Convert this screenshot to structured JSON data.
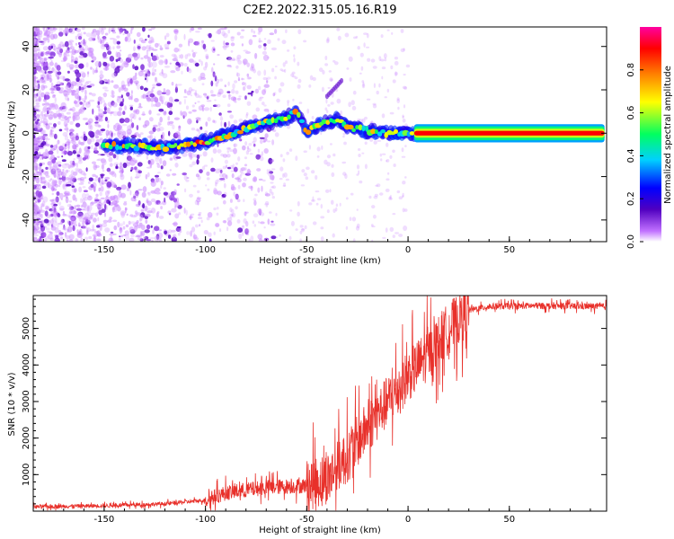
{
  "title": "C2E2.2022.315.05.16.R19",
  "chart_data": [
    {
      "type": "heatmap",
      "xlabel": "Height of straight line (km)",
      "ylabel": "Frequency (Hz)",
      "xlim": [
        -185,
        98
      ],
      "ylim": [
        -50,
        49
      ],
      "xticks": [
        -150,
        -100,
        -50,
        0,
        50
      ],
      "yticks": [
        -40,
        -20,
        0,
        20,
        40
      ],
      "grid": false,
      "colorbar": {
        "label": "Normalized spectral amplitude",
        "range": [
          0,
          1
        ],
        "ticks": [
          0.0,
          0.2,
          0.4,
          0.6,
          0.8
        ],
        "tick_labels": [
          "0.0",
          "0.2",
          "0.4",
          "0.6",
          "0.8"
        ],
        "colormap": [
          "#ffffff",
          "#c070ff",
          "#5000c0",
          "#0000ff",
          "#00d0ff",
          "#00ff60",
          "#ffff00",
          "#ff8000",
          "#ff0000",
          "#ff00a0"
        ]
      },
      "ridge": {
        "description_points": [
          {
            "x": -150,
            "y": -5.5
          },
          {
            "x": -120,
            "y": -6.5
          },
          {
            "x": -100,
            "y": -4
          },
          {
            "x": -90,
            "y": -1
          },
          {
            "x": -80,
            "y": 2
          },
          {
            "x": -70,
            "y": 5
          },
          {
            "x": -60,
            "y": 7
          },
          {
            "x": -55,
            "y": 10
          },
          {
            "x": -50,
            "y": 1
          },
          {
            "x": -40,
            "y": 5
          },
          {
            "x": -35,
            "y": 6
          },
          {
            "x": -30,
            "y": 3
          },
          {
            "x": -20,
            "y": 1
          },
          {
            "x": -10,
            "y": 0
          },
          {
            "x": 0,
            "y": 0
          },
          {
            "x": 97,
            "y": 0
          }
        ],
        "steady_tone": {
          "x_start": 3,
          "x_end": 97,
          "y": 0
        }
      }
    },
    {
      "type": "line",
      "xlabel": "Height of straight line (km)",
      "ylabel": "SNR (10 * v/v)",
      "xlim": [
        -185,
        98
      ],
      "ylim": [
        0,
        5900
      ],
      "xticks": [
        -150,
        -100,
        -50,
        0,
        50
      ],
      "yticks": [
        1000,
        2000,
        3000,
        4000,
        5000
      ],
      "grid": false,
      "color": "#e8302a",
      "trend": [
        {
          "x": -185,
          "y": 120
        },
        {
          "x": -150,
          "y": 150
        },
        {
          "x": -120,
          "y": 200
        },
        {
          "x": -100,
          "y": 300
        },
        {
          "x": -90,
          "y": 500
        },
        {
          "x": -70,
          "y": 650
        },
        {
          "x": -50,
          "y": 700
        },
        {
          "x": -40,
          "y": 900
        },
        {
          "x": -30,
          "y": 1500
        },
        {
          "x": -20,
          "y": 2300
        },
        {
          "x": -10,
          "y": 3000
        },
        {
          "x": 0,
          "y": 3700
        },
        {
          "x": 10,
          "y": 4300
        },
        {
          "x": 20,
          "y": 5000
        },
        {
          "x": 30,
          "y": 5500
        },
        {
          "x": 40,
          "y": 5600
        },
        {
          "x": 60,
          "y": 5620
        },
        {
          "x": 97,
          "y": 5600
        }
      ]
    }
  ]
}
